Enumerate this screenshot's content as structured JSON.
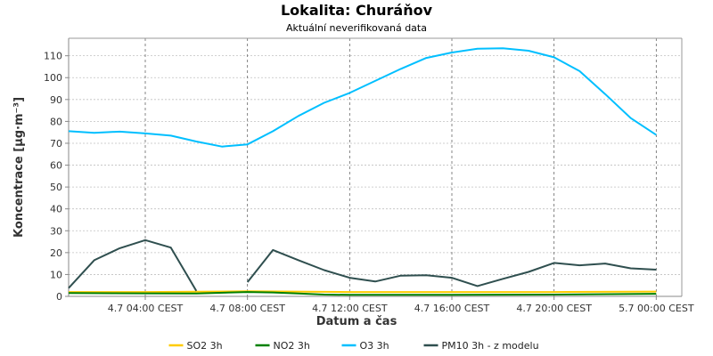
{
  "chart_data": {
    "type": "line",
    "title": "Lokalita: Churáňov",
    "subtitle": "Aktuální neverifikovaná data",
    "xlabel": "Datum a čas",
    "ylabel": "Koncentrace [µg·m⁻³]",
    "ylim": [
      0,
      118
    ],
    "yticks": [
      0,
      10,
      20,
      30,
      40,
      50,
      60,
      70,
      80,
      90,
      100,
      110
    ],
    "xlim": [
      "2024-07-04T01:00",
      "2024-07-05T01:00"
    ],
    "xticks": [
      {
        "x": "2024-07-04T04:00",
        "label": "4.7 04:00 CEST"
      },
      {
        "x": "2024-07-04T08:00",
        "label": "4.7 08:00 CEST"
      },
      {
        "x": "2024-07-04T12:00",
        "label": "4.7 12:00 CEST"
      },
      {
        "x": "2024-07-04T16:00",
        "label": "4.7 16:00 CEST"
      },
      {
        "x": "2024-07-04T20:00",
        "label": "4.7 20:00 CEST"
      },
      {
        "x": "2024-07-05T00:00",
        "label": "5.7 00:00 CEST"
      }
    ],
    "grid": true,
    "legend_position": "bottom",
    "series": [
      {
        "name": "SO2 3h",
        "color": "#ffcc00",
        "points": [
          [
            "2024-07-04T01:00",
            2
          ],
          [
            "2024-07-04T04:00",
            2
          ],
          [
            "2024-07-04T08:00",
            2.3
          ],
          [
            "2024-07-04T12:00",
            2
          ],
          [
            "2024-07-04T16:00",
            2
          ],
          [
            "2024-07-04T20:00",
            2
          ],
          [
            "2024-07-05T00:00",
            2.2
          ]
        ]
      },
      {
        "name": "NO2 3h",
        "color": "#008000",
        "points": [
          [
            "2024-07-04T01:00",
            1.5
          ],
          [
            "2024-07-04T04:00",
            1.4
          ],
          [
            "2024-07-04T06:00",
            1.3
          ],
          [
            "2024-07-04T08:00",
            2
          ],
          [
            "2024-07-04T09:00",
            1.8
          ],
          [
            "2024-07-04T10:00",
            1.3
          ],
          [
            "2024-07-04T11:00",
            0.8
          ],
          [
            "2024-07-04T12:00",
            0.7
          ],
          [
            "2024-07-04T16:00",
            0.7
          ],
          [
            "2024-07-04T20:00",
            0.8
          ],
          [
            "2024-07-05T00:00",
            1.2
          ]
        ]
      },
      {
        "name": "O3 3h",
        "color": "#00bfff",
        "points": [
          [
            "2024-07-04T01:00",
            75.5
          ],
          [
            "2024-07-04T02:00",
            74.8
          ],
          [
            "2024-07-04T03:00",
            75.3
          ],
          [
            "2024-07-04T04:00",
            74.5
          ],
          [
            "2024-07-04T05:00",
            73.5
          ],
          [
            "2024-07-04T06:00",
            70.8
          ],
          [
            "2024-07-04T07:00",
            68.5
          ],
          [
            "2024-07-04T08:00",
            69.5
          ],
          [
            "2024-07-04T09:00",
            75.5
          ],
          [
            "2024-07-04T10:00",
            82.5
          ],
          [
            "2024-07-04T11:00",
            88.5
          ],
          [
            "2024-07-04T12:00",
            93
          ],
          [
            "2024-07-04T13:00",
            98.5
          ],
          [
            "2024-07-04T14:00",
            104
          ],
          [
            "2024-07-04T15:00",
            109
          ],
          [
            "2024-07-04T16:00",
            111.5
          ],
          [
            "2024-07-04T17:00",
            113.2
          ],
          [
            "2024-07-04T18:00",
            113.4
          ],
          [
            "2024-07-04T19:00",
            112.3
          ],
          [
            "2024-07-04T20:00",
            109.3
          ],
          [
            "2024-07-04T21:00",
            103
          ],
          [
            "2024-07-04T22:00",
            92.5
          ],
          [
            "2024-07-04T23:00",
            81.5
          ],
          [
            "2024-07-05T00:00",
            73.8
          ]
        ]
      },
      {
        "name": "PM10 3h - z modelu",
        "color": "#2f4f4f",
        "points": [
          [
            "2024-07-04T01:00",
            3.8
          ],
          [
            "2024-07-04T02:00",
            16.5
          ],
          [
            "2024-07-04T03:00",
            22
          ],
          [
            "2024-07-04T04:00",
            25.7
          ],
          [
            "2024-07-04T05:00",
            22.3
          ],
          [
            "2024-07-04T06:00",
            2.5
          ],
          null,
          [
            "2024-07-04T08:00",
            6.5
          ],
          [
            "2024-07-04T09:00",
            21.2
          ],
          [
            "2024-07-04T10:00",
            16.5
          ],
          [
            "2024-07-04T11:00",
            12
          ],
          [
            "2024-07-04T12:00",
            8.5
          ],
          [
            "2024-07-04T13:00",
            6.8
          ],
          [
            "2024-07-04T14:00",
            9.5
          ],
          [
            "2024-07-04T15:00",
            9.7
          ],
          [
            "2024-07-04T16:00",
            8.5
          ],
          [
            "2024-07-04T17:00",
            4.7
          ],
          [
            "2024-07-04T18:00",
            8
          ],
          [
            "2024-07-04T19:00",
            11.2
          ],
          [
            "2024-07-04T20:00",
            15.3
          ],
          [
            "2024-07-04T21:00",
            14.2
          ],
          [
            "2024-07-04T22:00",
            15
          ],
          [
            "2024-07-04T23:00",
            12.8
          ],
          [
            "2024-07-05T00:00",
            12.2
          ]
        ]
      }
    ]
  }
}
